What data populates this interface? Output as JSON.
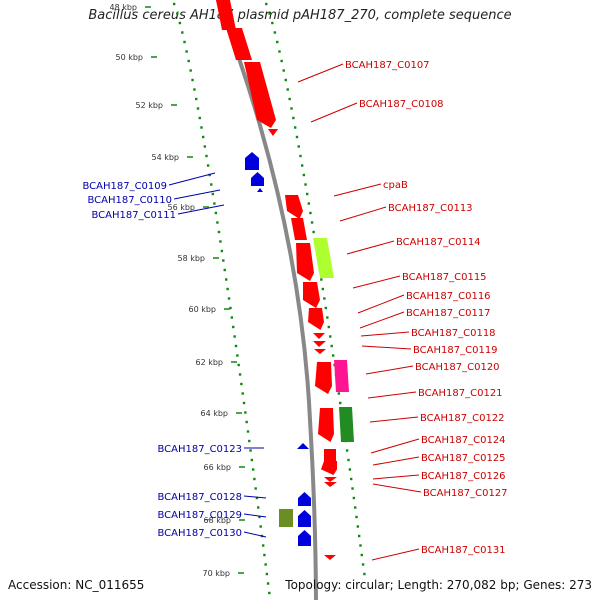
{
  "title": "Bacillus cereus AH187 plasmid pAH187_270, complete sequence",
  "footer": {
    "accession": "Accession: NC_011655",
    "topology": "Topology: circular; Length: 270,082 bp; Genes: 273"
  },
  "colors": {
    "forward_gene": "#ff0000",
    "reverse_gene": "#0000dd",
    "forward_label": "#cc0000",
    "reverse_label": "#0000aa",
    "backbone": "#888888",
    "ticks": "#118811",
    "light_green_feature": "#adff2f",
    "dark_green_feature": "#228b22",
    "olive_feature": "#6b8e23",
    "pink_feature": "#ff1493"
  },
  "scale_labels": [
    "48 kbp",
    "50 kbp",
    "52 kbp",
    "54 kbp",
    "56 kbp",
    "58 kbp",
    "60 kbp",
    "62 kbp",
    "64 kbp",
    "66 kbp",
    "68 kbp",
    "70 kbp"
  ],
  "forward_genes": [
    "BCAH187_C0107",
    "BCAH187_C0108",
    "cpaB",
    "BCAH187_C0113",
    "BCAH187_C0114",
    "BCAH187_C0115",
    "BCAH187_C0116",
    "BCAH187_C0117",
    "BCAH187_C0118",
    "BCAH187_C0119",
    "BCAH187_C0120",
    "BCAH187_C0121",
    "BCAH187_C0122",
    "BCAH187_C0124",
    "BCAH187_C0125",
    "BCAH187_C0126",
    "BCAH187_C0127",
    "BCAH187_C0131"
  ],
  "reverse_genes": [
    "BCAH187_C0109",
    "BCAH187_C0110",
    "BCAH187_C0111",
    "BCAH187_C0123",
    "BCAH187_C0128",
    "BCAH187_C0129",
    "BCAH187_C0130"
  ]
}
